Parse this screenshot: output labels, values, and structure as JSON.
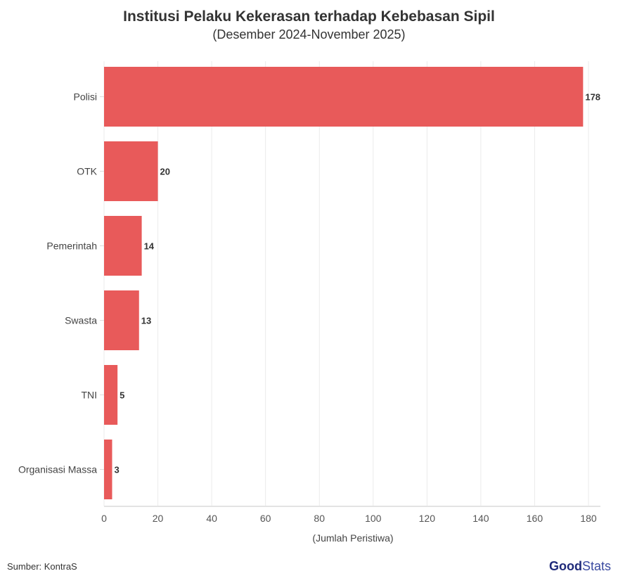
{
  "chart_data": {
    "type": "bar",
    "orientation": "horizontal",
    "title": "Institusi Pelaku Kekerasan terhadap Kebebasan Sipil",
    "subtitle": "(Desember 2024-November 2025)",
    "categories": [
      "Polisi",
      "OTK",
      "Pemerintah",
      "Swasta",
      "TNI",
      "Organisasi Massa"
    ],
    "values": [
      178,
      20,
      14,
      13,
      5,
      3
    ],
    "xlabel": "(Jumlah Peristiwa)",
    "ylabel": "",
    "xlim": [
      0,
      184
    ],
    "xticks": [
      0,
      20,
      40,
      60,
      80,
      100,
      120,
      140,
      160,
      180
    ],
    "grid": true,
    "bar_color": "#E85A5A",
    "data_labels": true
  },
  "footer": {
    "source": "Sumber: KontraS",
    "logo_text_bold": "Good",
    "logo_text_light": "Stats"
  }
}
